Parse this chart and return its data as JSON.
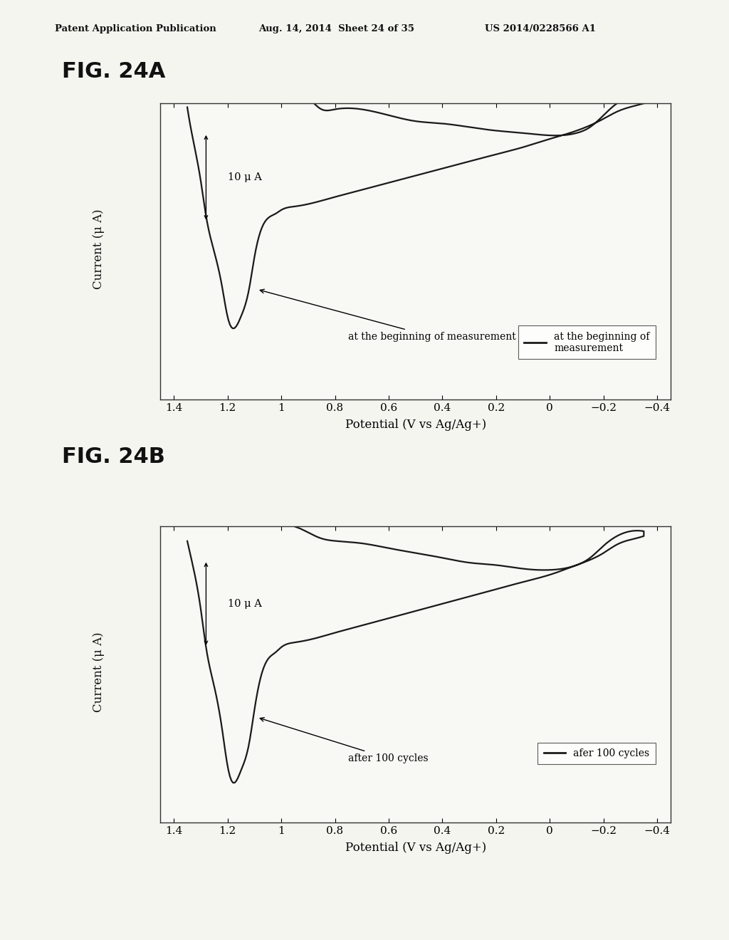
{
  "header_left": "Patent Application Publication",
  "header_mid": "Aug. 14, 2014  Sheet 24 of 35",
  "header_right": "US 2014/0228566 A1",
  "fig_a_label": "FIG. 24A",
  "fig_b_label": "FIG. 24B",
  "xlabel": "Potential (V vs Ag/Ag+)",
  "ylabel": "Current (μ A)",
  "scale_label": "10 μ A",
  "xticks": [
    1.4,
    1.2,
    1.0,
    0.8,
    0.6,
    0.4,
    0.2,
    0.0,
    -0.2,
    -0.4
  ],
  "xtick_labels": [
    "1.4",
    "1.2",
    "1",
    "0.8",
    "0.6",
    "0.4",
    "0.2",
    "0",
    "−0.2",
    "−0.4"
  ],
  "legend_a": "at the beginning of\nmeasurement",
  "legend_b": "afer 100 cycles",
  "annotation_a": "at the beginning of measurement",
  "annotation_b": "after 100 cycles",
  "bg_color": "#f5f5f0",
  "line_color": "#1a1a1a",
  "box_color": "#ffffff"
}
